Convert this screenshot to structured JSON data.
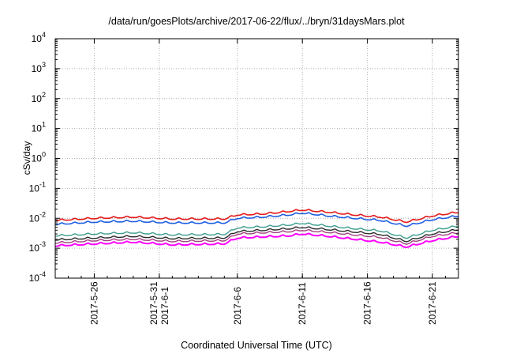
{
  "chart_data": {
    "type": "line",
    "title": "/data/run/goesPlots/archive/2017-06-22/flux/../bryn/31daysMars.plot",
    "xlabel": "Coordinated Universal Time (UTC)",
    "ylabel": "cSv/day",
    "y_scale": "log",
    "ylim": [
      0.0001,
      10000
    ],
    "xlim": [
      "2017-05-23",
      "2017-06-23"
    ],
    "y_ticks": [
      {
        "base": "10",
        "exp": "-4"
      },
      {
        "base": "10",
        "exp": "-3"
      },
      {
        "base": "10",
        "exp": "-2"
      },
      {
        "base": "10",
        "exp": "-1"
      },
      {
        "base": "10",
        "exp": "0"
      },
      {
        "base": "10",
        "exp": "1"
      },
      {
        "base": "10",
        "exp": "2"
      },
      {
        "base": "10",
        "exp": "3"
      },
      {
        "base": "10",
        "exp": "4"
      }
    ],
    "x_ticks": [
      {
        "date": "2017-05-26",
        "lines": [
          "2017-5-26"
        ]
      },
      {
        "date": "2017-05-31",
        "lines": [
          "2017-5-31",
          "2017-6-1"
        ]
      },
      {
        "date": "2017-06-06",
        "lines": [
          "2017-6-6"
        ]
      },
      {
        "date": "2017-06-11",
        "lines": [
          "2017-6-11"
        ]
      },
      {
        "date": "2017-06-16",
        "lines": [
          "2017-6-16"
        ]
      },
      {
        "date": "2017-06-21",
        "lines": [
          "2017-6-21"
        ]
      }
    ],
    "grid": true,
    "legend": "none",
    "series": [
      {
        "color": "#e41a1c",
        "width": 1.6,
        "x": [
          "2017-05-23",
          "2017-05-26",
          "2017-05-29",
          "2017-06-01",
          "2017-06-05",
          "2017-06-06",
          "2017-06-08",
          "2017-06-10",
          "2017-06-11",
          "2017-06-13",
          "2017-06-15",
          "2017-06-17",
          "2017-06-19",
          "2017-06-21",
          "2017-06-23"
        ],
        "y": [
          0.0085,
          0.01,
          0.011,
          0.0095,
          0.0095,
          0.013,
          0.014,
          0.017,
          0.019,
          0.016,
          0.013,
          0.011,
          0.0075,
          0.012,
          0.016
        ]
      },
      {
        "color": "#1f5fe0",
        "width": 1.6,
        "x": [
          "2017-05-23",
          "2017-05-26",
          "2017-05-29",
          "2017-06-01",
          "2017-06-05",
          "2017-06-06",
          "2017-06-08",
          "2017-06-10",
          "2017-06-11",
          "2017-06-13",
          "2017-06-15",
          "2017-06-17",
          "2017-06-19",
          "2017-06-21",
          "2017-06-23"
        ],
        "y": [
          0.0063,
          0.0075,
          0.008,
          0.007,
          0.007,
          0.01,
          0.011,
          0.013,
          0.015,
          0.012,
          0.01,
          0.0085,
          0.0055,
          0.009,
          0.012
        ]
      },
      {
        "color": "#3a9c8c",
        "width": 1.4,
        "x": [
          "2017-05-23",
          "2017-05-26",
          "2017-05-29",
          "2017-06-01",
          "2017-06-05",
          "2017-06-06",
          "2017-06-08",
          "2017-06-10",
          "2017-06-11",
          "2017-06-13",
          "2017-06-15",
          "2017-06-17",
          "2017-06-19",
          "2017-06-21",
          "2017-06-23"
        ],
        "y": [
          0.0026,
          0.003,
          0.0033,
          0.0028,
          0.0029,
          0.0048,
          0.0052,
          0.006,
          0.0068,
          0.0055,
          0.0045,
          0.0038,
          0.0022,
          0.004,
          0.0055
        ]
      },
      {
        "color": "#2a2a2a",
        "width": 1.4,
        "x": [
          "2017-05-23",
          "2017-05-26",
          "2017-05-29",
          "2017-06-01",
          "2017-06-05",
          "2017-06-06",
          "2017-06-08",
          "2017-06-10",
          "2017-06-11",
          "2017-06-13",
          "2017-06-15",
          "2017-06-17",
          "2017-06-19",
          "2017-06-21",
          "2017-06-23"
        ],
        "y": [
          0.0019,
          0.0022,
          0.0025,
          0.0021,
          0.0022,
          0.0036,
          0.004,
          0.0045,
          0.005,
          0.0042,
          0.0035,
          0.0029,
          0.0017,
          0.003,
          0.0042
        ]
      },
      {
        "color": "#a0407f",
        "width": 1.4,
        "x": [
          "2017-05-23",
          "2017-05-26",
          "2017-05-29",
          "2017-06-01",
          "2017-06-05",
          "2017-06-06",
          "2017-06-08",
          "2017-06-10",
          "2017-06-11",
          "2017-06-13",
          "2017-06-15",
          "2017-06-17",
          "2017-06-19",
          "2017-06-21",
          "2017-06-23"
        ],
        "y": [
          0.0015,
          0.0018,
          0.002,
          0.0017,
          0.0018,
          0.003,
          0.0033,
          0.0036,
          0.004,
          0.0034,
          0.0028,
          0.0023,
          0.0014,
          0.0025,
          0.0033
        ]
      },
      {
        "color": "#ff00ff",
        "width": 2.0,
        "x": [
          "2017-05-23",
          "2017-05-26",
          "2017-05-29",
          "2017-06-01",
          "2017-06-05",
          "2017-06-06",
          "2017-06-08",
          "2017-06-10",
          "2017-06-11",
          "2017-06-13",
          "2017-06-15",
          "2017-06-17",
          "2017-06-19",
          "2017-06-21",
          "2017-06-23"
        ],
        "y": [
          0.0012,
          0.0014,
          0.0016,
          0.0013,
          0.0014,
          0.0022,
          0.0024,
          0.0026,
          0.003,
          0.0025,
          0.002,
          0.0016,
          0.0011,
          0.0018,
          0.0025
        ]
      }
    ]
  }
}
